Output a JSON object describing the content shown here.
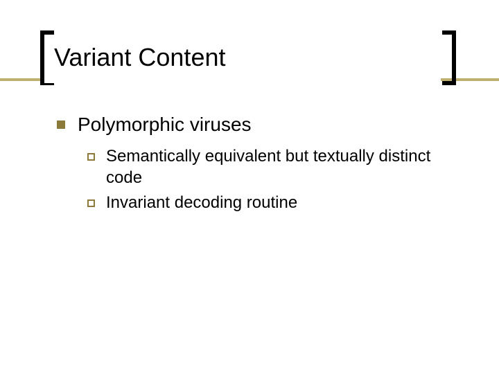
{
  "slide": {
    "title": "Variant Content",
    "accent_color": "#c0b070",
    "bullet_color": "#8b7a3a",
    "title_fontsize": 36,
    "body_fontsize_lvl1": 28,
    "body_fontsize_lvl2": 24,
    "background_color": "#ffffff",
    "text_color": "#000000",
    "bracket_color": "#000000",
    "items": [
      {
        "label": "Polymorphic viruses",
        "children": [
          {
            "label": "Semantically equivalent but textually distinct code"
          },
          {
            "label": "Invariant decoding routine"
          }
        ]
      }
    ]
  }
}
